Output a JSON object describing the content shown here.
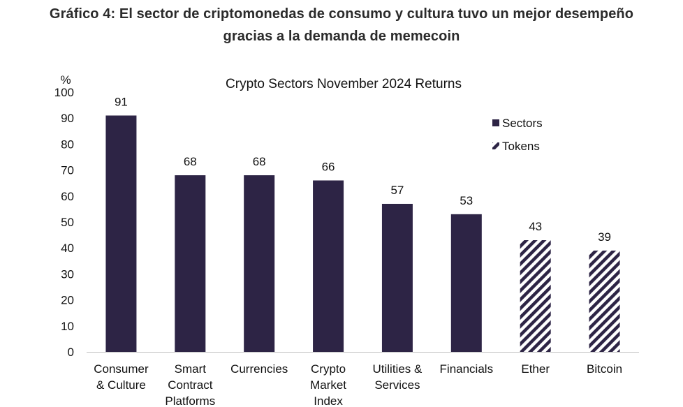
{
  "heading": {
    "line1": "Gráfico 4: El sector de criptomonedas de consumo y cultura tuvo un mejor desempeño",
    "line2": "gracias a la demanda de memecoin"
  },
  "chart_data": {
    "type": "bar",
    "title": "Crypto Sectors November 2024 Returns",
    "ylabel": "%",
    "xlabel": "",
    "ylim": [
      0,
      100
    ],
    "yticks": [
      0,
      10,
      20,
      30,
      40,
      50,
      60,
      70,
      80,
      90,
      100
    ],
    "grid": false,
    "legend_position": "top-right",
    "categories": [
      [
        "Consumer",
        "& Culture"
      ],
      [
        "Smart",
        "Contract",
        "Platforms"
      ],
      [
        "Currencies"
      ],
      [
        "Crypto",
        "Market",
        "Index"
      ],
      [
        "Utilities &",
        "Services"
      ],
      [
        "Financials"
      ],
      [
        "Ether"
      ],
      [
        "Bitcoin"
      ]
    ],
    "values": [
      91,
      68,
      68,
      66,
      57,
      53,
      43,
      39
    ],
    "data_labels": [
      "91",
      "68",
      "68",
      "66",
      "57",
      "53",
      "43",
      "39"
    ],
    "series_kind": [
      "Sectors",
      "Sectors",
      "Sectors",
      "Sectors",
      "Sectors",
      "Sectors",
      "Tokens",
      "Tokens"
    ],
    "legend": [
      {
        "name": "Sectors",
        "style": "solid"
      },
      {
        "name": "Tokens",
        "style": "hatched"
      }
    ],
    "colors": {
      "bar": "#2d2445",
      "axis": "#bfbfbf"
    }
  }
}
